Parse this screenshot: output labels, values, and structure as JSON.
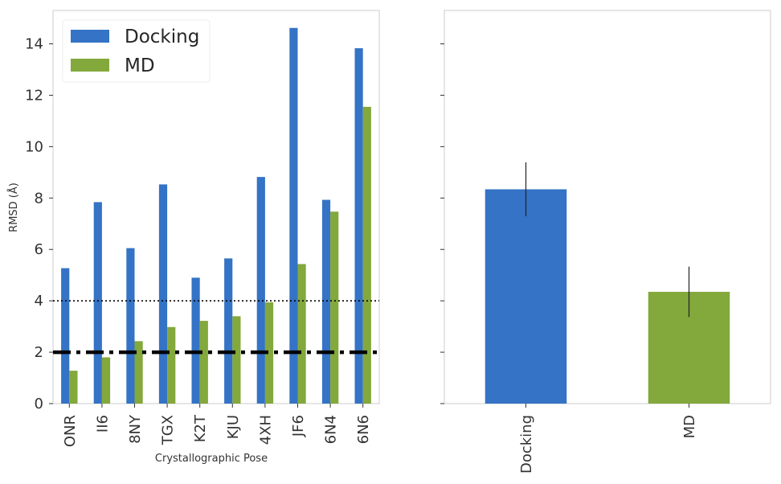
{
  "colors": {
    "docking": "#3473c5",
    "md": "#83a83c",
    "frame": "#cccccc",
    "text": "#333333"
  },
  "chart_data": [
    {
      "type": "bar",
      "categories": [
        "ONR",
        "II6",
        "8NY",
        "TGX",
        "K2T",
        "KJU",
        "4XH",
        "JF6",
        "6N4",
        "6N6"
      ],
      "series": [
        {
          "name": "Docking",
          "values": [
            5.27,
            7.84,
            6.05,
            8.53,
            4.9,
            5.65,
            8.82,
            14.62,
            7.93,
            13.83
          ]
        },
        {
          "name": "MD",
          "values": [
            1.28,
            1.8,
            2.43,
            2.98,
            3.22,
            3.4,
            3.94,
            5.43,
            7.47,
            11.55
          ]
        }
      ],
      "reference_lines": [
        {
          "y": 2,
          "style": "dash-dot"
        },
        {
          "y": 4,
          "style": "dotted"
        }
      ],
      "xlabel": "Crystallographic Pose",
      "ylabel": "RMSD (Å)",
      "ylim": [
        0,
        15.3
      ],
      "yticks": [
        "0",
        "2",
        "4",
        "6",
        "8",
        "10",
        "12",
        "14"
      ],
      "legend": {
        "placement": "top-left",
        "entries": [
          "Docking",
          "MD"
        ]
      },
      "grid": false
    },
    {
      "type": "bar",
      "categories": [
        "Docking",
        "MD"
      ],
      "values": [
        8.34,
        4.35
      ],
      "error": [
        1.05,
        0.98
      ],
      "ylim": [
        0,
        15.3
      ],
      "shared_y": true,
      "grid": false
    }
  ]
}
